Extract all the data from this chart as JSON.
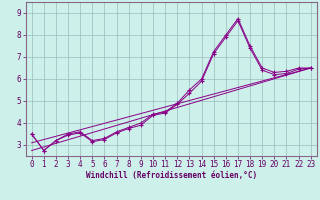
{
  "xlabel": "Windchill (Refroidissement éolien,°C)",
  "ylabel": "",
  "bg_color": "#cef0ea",
  "line_color": "#880088",
  "grid_color": "#99bbbb",
  "axis_color": "#660066",
  "spine_color": "#886688",
  "xlim": [
    -0.5,
    23.5
  ],
  "ylim": [
    2.5,
    9.5
  ],
  "yticks": [
    3,
    4,
    5,
    6,
    7,
    8,
    9
  ],
  "xticks": [
    0,
    1,
    2,
    3,
    4,
    5,
    6,
    7,
    8,
    9,
    10,
    11,
    12,
    13,
    14,
    15,
    16,
    17,
    18,
    19,
    20,
    21,
    22,
    23
  ],
  "series1_x": [
    0,
    1,
    2,
    3,
    4,
    5,
    6,
    7,
    8,
    9,
    10,
    11,
    12,
    13,
    14,
    15,
    16,
    17,
    18,
    19,
    20,
    21,
    22,
    23
  ],
  "series1_y": [
    3.5,
    2.75,
    3.2,
    3.5,
    3.6,
    3.2,
    3.3,
    3.6,
    3.8,
    4.0,
    4.4,
    4.5,
    4.9,
    5.5,
    6.0,
    7.25,
    8.0,
    8.75,
    7.5,
    6.5,
    6.3,
    6.35,
    6.5,
    6.5
  ],
  "series2_x": [
    0,
    1,
    2,
    3,
    4,
    5,
    6,
    7,
    8,
    9,
    10,
    11,
    12,
    13,
    14,
    15,
    16,
    17,
    18,
    19,
    20,
    21,
    22,
    23
  ],
  "series2_y": [
    3.5,
    2.75,
    3.2,
    3.45,
    3.55,
    3.15,
    3.25,
    3.55,
    3.75,
    3.9,
    4.35,
    4.45,
    4.85,
    5.35,
    5.9,
    7.15,
    7.9,
    8.65,
    7.4,
    6.4,
    6.2,
    6.25,
    6.45,
    6.5
  ],
  "series3_x": [
    0,
    23
  ],
  "series3_y": [
    3.1,
    6.5
  ],
  "series4_x": [
    0,
    23
  ],
  "series4_y": [
    2.75,
    6.5
  ]
}
